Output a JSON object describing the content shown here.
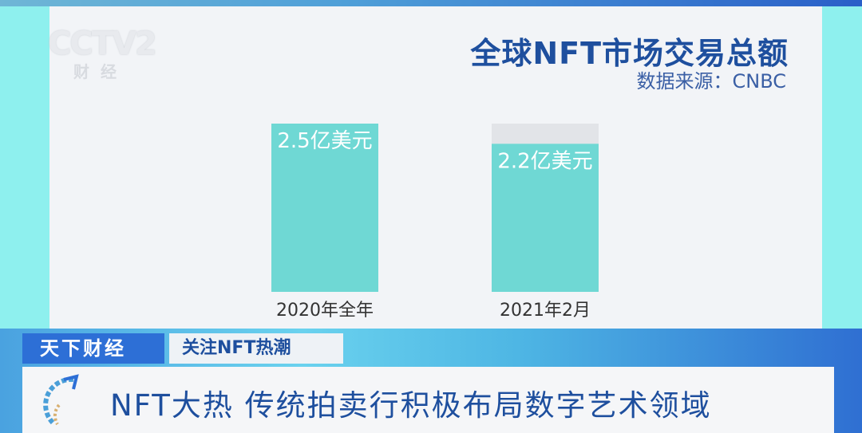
{
  "channel": {
    "logo": "CCTV2",
    "sublogo": "财经"
  },
  "chart_data": {
    "type": "bar",
    "title": "全球NFT市场交易总额",
    "source": "数据来源：CNBC",
    "categories": [
      "2020年全年",
      "2021年2月"
    ],
    "values": [
      2.5,
      2.2
    ],
    "data_labels": [
      "2.5亿美元",
      "2.2亿美元"
    ],
    "unit": "亿美元",
    "ylim": [
      0,
      2.5
    ],
    "grid": false,
    "bar_color": "#6fd8d4",
    "track_color": "#e2e4e8"
  },
  "lower_third": {
    "program": "天下财经",
    "topic": "关注NFT热潮",
    "headline": "NFT大热 传统拍卖行积极布局数字艺术领域"
  },
  "colors": {
    "brand_blue": "#2d6fd6",
    "title_blue": "#1e4f9e",
    "background_cyan": "#8ef0ee"
  }
}
